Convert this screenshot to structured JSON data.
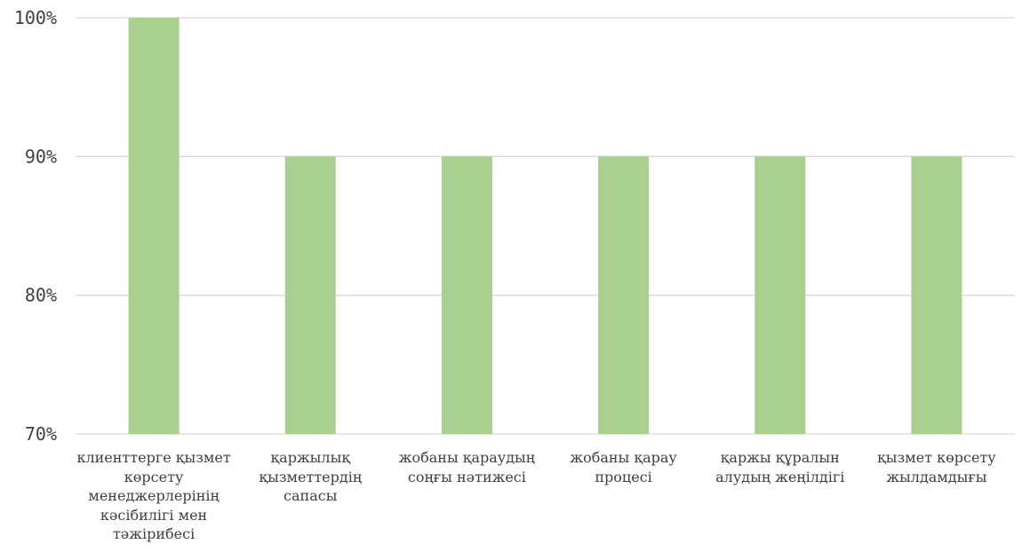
{
  "chart_data": {
    "type": "bar",
    "title": "",
    "xlabel": "",
    "ylabel": "",
    "categories": [
      "клиенттерге қызмет көрсету менеджерлерінің кәсібилігі мен тәжірибесі",
      "қаржылық қызметтердің сапасы",
      "жобаны қараудың соңғы нәтижесі",
      "жобаны қарау процесі",
      "қаржы құралын алудың жеңілдігі",
      "қызмет көрсету жылдамдығы"
    ],
    "values": [
      100,
      90,
      90,
      90,
      90,
      90
    ],
    "ylim": [
      70,
      100
    ],
    "yticks": [
      70,
      80,
      90,
      100
    ],
    "ytick_labels": [
      "70%",
      "80%",
      "90%",
      "100%"
    ],
    "grid": true,
    "legend": "none",
    "colors": {
      "bar": "#a9d08e",
      "grid": "#d9d9d9",
      "text": "#404040"
    }
  }
}
